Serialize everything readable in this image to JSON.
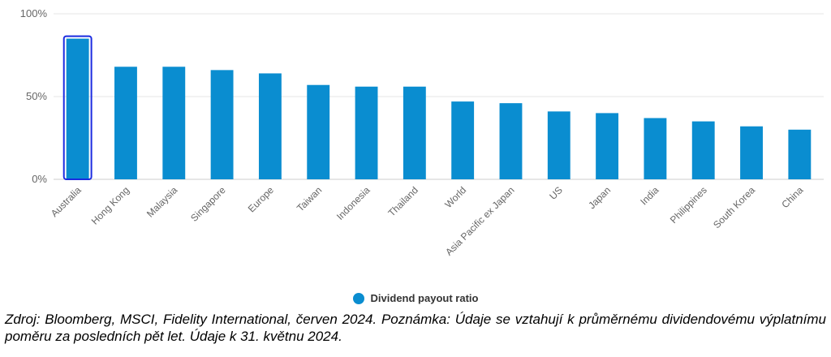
{
  "colors": {
    "bar": "#0a8dd0",
    "highlight_outline": "#1a2be0",
    "grid": "#e6e6e6",
    "axis": "#cccccc"
  },
  "chart_data": {
    "type": "bar",
    "categories": [
      "Australia",
      "Hong Kong",
      "Malaysia",
      "Singapore",
      "Europe",
      "Taiwan",
      "Indonesia",
      "Thailand",
      "World",
      "Asia Pacific ex Japan",
      "US",
      "Japan",
      "India",
      "Philippines",
      "South Korea",
      "China"
    ],
    "series": [
      {
        "name": "Dividend payout ratio",
        "values": [
          85,
          68,
          68,
          66,
          64,
          57,
          56,
          56,
          47,
          46,
          41,
          40,
          37,
          35,
          32,
          30
        ]
      }
    ],
    "ylim": [
      0,
      100
    ],
    "yticks": [
      "0%",
      "50%",
      "100%"
    ],
    "highlight": "Australia",
    "grid": true,
    "legend_position": "bottom-center"
  },
  "legend": {
    "label": "Dividend payout ratio"
  },
  "note": "Zdroj: Bloomberg, MSCI, Fidelity International, červen 2024. Poznámka: Údaje se vztahují k průměrnému dividendovému výplatnímu poměru za posledních pět let. Údaje k 31. květnu 2024."
}
